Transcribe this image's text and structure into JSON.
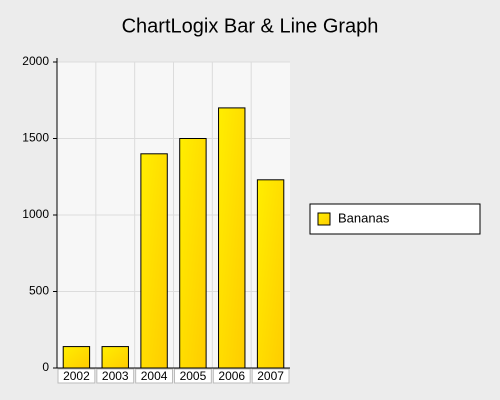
{
  "chart_data": {
    "type": "bar",
    "title": "ChartLogix Bar & Line Graph",
    "categories": [
      "2002",
      "2003",
      "2004",
      "2005",
      "2006",
      "2007"
    ],
    "series": [
      {
        "name": "Bananas",
        "color": "#ffee00",
        "values": [
          140,
          140,
          1400,
          1500,
          1700,
          1230
        ]
      }
    ],
    "ylim": [
      0,
      2000
    ],
    "yticks": [
      0,
      500,
      1000,
      1500,
      2000
    ],
    "grid": true,
    "legend": "right"
  }
}
